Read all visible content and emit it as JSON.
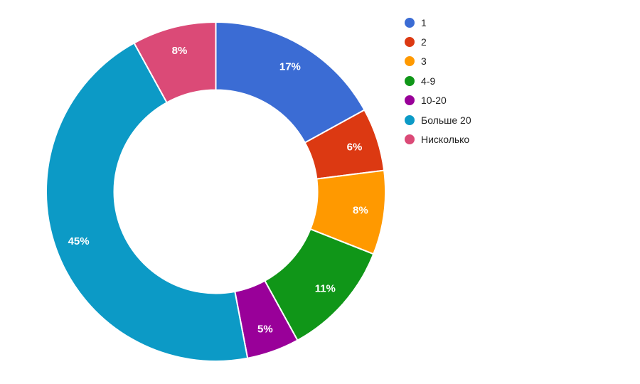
{
  "page": {
    "background_color": "#ffffff"
  },
  "chart_data": {
    "type": "pie",
    "subtype": "donut",
    "pie_hole_ratio": 0.6,
    "direction": "clockwise",
    "start_angle_deg": 0,
    "categories": [
      "1",
      "2",
      "3",
      "4-9",
      "10-20",
      "Больше 20",
      "Нисколько"
    ],
    "values": [
      17,
      6,
      8,
      11,
      5,
      45,
      8
    ],
    "value_unit": "%",
    "slice_labels": [
      "17%",
      "6%",
      "8%",
      "11%",
      "5%",
      "45%",
      "8%"
    ],
    "colors": [
      "#3B6CD4",
      "#DC3912",
      "#FF9900",
      "#109618",
      "#990099",
      "#0C9AC6",
      "#DB4A77"
    ],
    "slice_label_color": "#ffffff",
    "slice_border_color": "#ffffff",
    "legend": {
      "position": "right",
      "entries": [
        "1",
        "2",
        "3",
        "4-9",
        "10-20",
        "Больше 20",
        "Нисколько"
      ],
      "text_color": "#222222"
    }
  }
}
